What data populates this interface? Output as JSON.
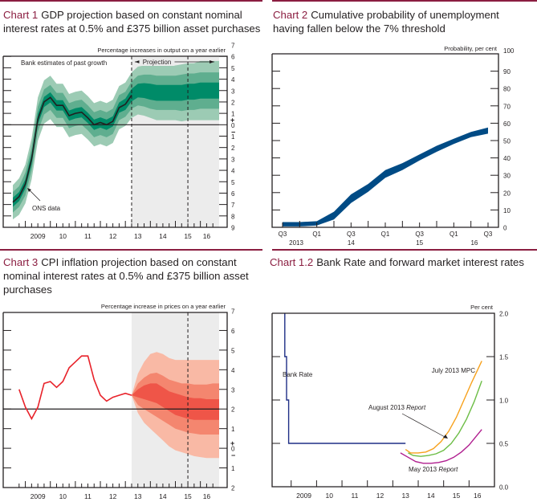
{
  "colors": {
    "title_accent": "#8b1e41",
    "gdp_band_outer": "#9ccbb4",
    "gdp_band_mid": "#5fae8f",
    "gdp_band_inner": "#008b68",
    "projection_shade": "#ececec",
    "unemployment_band": "#004b85",
    "cpi_band_outer": "#f9b9a5",
    "cpi_band_mid": "#f4866f",
    "cpi_band_inner": "#ef5548",
    "cpi_line": "#e8222a",
    "bank_rate": "#1f2f86",
    "july_mpc": "#f7a11c",
    "august_report": "#6cbd45",
    "may_report": "#b01e8f"
  },
  "chart_data": [
    {
      "id": "chart1",
      "type": "area",
      "number_label": "Chart 1",
      "title": "GDP projection based on constant nominal interest rates at 0.5% and £375 billion asset purchases",
      "ylabel": "Percentage increases in output on a year earlier",
      "ylim": [
        -9,
        7
      ],
      "yticks": [
        "7",
        "6",
        "5",
        "4",
        "3",
        "2",
        "1",
        "0",
        "1",
        "2",
        "3",
        "4",
        "5",
        "6",
        "7",
        "8",
        "9"
      ],
      "ytick_values": [
        7,
        6,
        5,
        4,
        3,
        2,
        1,
        0,
        -1,
        -2,
        -3,
        -4,
        -5,
        -6,
        -7,
        -8,
        -9
      ],
      "sign_marks": [
        "+",
        "−"
      ],
      "xlim": [
        2008.5,
        2016.75
      ],
      "xtick_labels": [
        "2009",
        "10",
        "11",
        "12",
        "13",
        "14",
        "15",
        "16"
      ],
      "xtick_positions": [
        2009.5,
        2010.5,
        2011.5,
        2012.5,
        2013.5,
        2014.5,
        2015.5,
        2016.25
      ],
      "projection_start": 2013.25,
      "two_year_point": 2015.5,
      "annotations": {
        "past": "Bank estimates of past growth",
        "projection": "Projection",
        "ons": "ONS data"
      },
      "x": [
        2008.5,
        2008.75,
        2009,
        2009.25,
        2009.5,
        2009.75,
        2010,
        2010.25,
        2010.5,
        2010.75,
        2011,
        2011.25,
        2011.5,
        2011.75,
        2012,
        2012.25,
        2012.5,
        2012.75,
        2013,
        2013.25,
        2013.5,
        2013.75,
        2014,
        2014.25,
        2014.5,
        2014.75,
        2015,
        2015.25,
        2015.5,
        2015.75,
        2016,
        2016.25,
        2016.5,
        2016.75
      ],
      "central": [
        -6.8,
        -6.3,
        -5.2,
        -3,
        0.5,
        2,
        2.4,
        1.7,
        1.7,
        0.8,
        1,
        1.1,
        0.6,
        0,
        0.2,
        0,
        0.3,
        1.5,
        1.8,
        2.6,
        3,
        3,
        2.9,
        2.8,
        2.8,
        2.8,
        2.8,
        2.8,
        2.9,
        2.9,
        3,
        3,
        3,
        3
      ],
      "bands": [
        {
          "name": "90%",
          "halfwidth": [
            1.5,
            1.6,
            1.7,
            1.8,
            1.9,
            1.9,
            1.9,
            1.9,
            1.9,
            1.9,
            1.9,
            1.9,
            1.9,
            1.9,
            1.9,
            1.9,
            1.9,
            1.9,
            1.9,
            2,
            2.1,
            2.2,
            2.3,
            2.4,
            2.4,
            2.4,
            2.4,
            2.5,
            2.5,
            2.5,
            2.6,
            2.6,
            2.6,
            2.6
          ]
        },
        {
          "name": "60%",
          "halfwidth": [
            0.9,
            0.9,
            1,
            1,
            1.1,
            1.1,
            1.1,
            1.1,
            1.1,
            1.1,
            1.1,
            1.1,
            1.1,
            1.1,
            1.1,
            1.1,
            1.1,
            1.1,
            1.1,
            1.2,
            1.3,
            1.4,
            1.5,
            1.5,
            1.5,
            1.5,
            1.5,
            1.6,
            1.6,
            1.6,
            1.6,
            1.6,
            1.6,
            1.6
          ]
        },
        {
          "name": "30%",
          "halfwidth": [
            0.4,
            0.4,
            0.4,
            0.45,
            0.45,
            0.45,
            0.45,
            0.45,
            0.45,
            0.45,
            0.45,
            0.45,
            0.45,
            0.45,
            0.45,
            0.45,
            0.45,
            0.45,
            0.5,
            0.55,
            0.6,
            0.65,
            0.7,
            0.7,
            0.7,
            0.7,
            0.7,
            0.7,
            0.7,
            0.7,
            0.7,
            0.7,
            0.7,
            0.7
          ]
        }
      ]
    },
    {
      "id": "chart2",
      "type": "area",
      "number_label": "Chart 2",
      "title": "Cumulative probability of unemployment having fallen below the 7% threshold",
      "ylabel": "Probability, per cent",
      "ylim": [
        0,
        100
      ],
      "yticks": [
        "0",
        "10",
        "20",
        "30",
        "40",
        "50",
        "60",
        "70",
        "80",
        "90",
        "100"
      ],
      "ytick_values": [
        0,
        10,
        20,
        30,
        40,
        50,
        60,
        70,
        80,
        90,
        100
      ],
      "xtick_labels": [
        "Q3",
        "Q1",
        "Q3",
        "Q1",
        "Q3",
        "Q1",
        "Q3"
      ],
      "xtick_positions": [
        0,
        2,
        4,
        6,
        8,
        10,
        12
      ],
      "year_labels": [
        "2013",
        "14",
        "15",
        "16"
      ],
      "year_positions": [
        0.8,
        4,
        8,
        11.2
      ],
      "x": [
        0,
        1,
        2,
        3,
        4,
        5,
        6,
        7,
        8,
        9,
        10,
        11,
        12
      ],
      "lower": [
        0.5,
        0.5,
        1,
        4.5,
        14,
        20.5,
        28.5,
        33,
        38.5,
        43.5,
        48,
        52,
        54
      ],
      "upper": [
        3,
        3,
        3.5,
        9,
        19,
        25,
        33,
        37,
        42,
        47,
        51,
        55,
        57.5
      ]
    },
    {
      "id": "chart3",
      "type": "area",
      "number_label": "Chart 3",
      "title": "CPI inflation projection based on constant nominal interest rates at 0.5% and £375 billion asset purchases",
      "ylabel": "Percentage increase in prices on a year earlier",
      "ylim": [
        -2,
        7
      ],
      "yticks": [
        "7",
        "6",
        "5",
        "4",
        "3",
        "2",
        "1",
        "0",
        "1",
        "2"
      ],
      "ytick_values": [
        7,
        6,
        5,
        4,
        3,
        2,
        1,
        0,
        -1,
        -2
      ],
      "sign_marks": [
        "+",
        "−"
      ],
      "xlim": [
        2008.5,
        2016.75
      ],
      "xtick_labels": [
        "2009",
        "10",
        "11",
        "12",
        "13",
        "14",
        "15",
        "16"
      ],
      "xtick_positions": [
        2009.5,
        2010.5,
        2011.5,
        2012.5,
        2013.5,
        2014.5,
        2015.5,
        2016.25
      ],
      "projection_start": 2013.25,
      "two_year_point": 2015.5,
      "history_x": [
        2008.75,
        2009,
        2009.25,
        2009.5,
        2009.75,
        2010,
        2010.25,
        2010.5,
        2010.75,
        2011,
        2011.25,
        2011.5,
        2011.75,
        2012,
        2012.25,
        2012.5,
        2012.75,
        2013,
        2013.25
      ],
      "history_y": [
        3,
        2.1,
        1.5,
        2.1,
        3.3,
        3.4,
        3.1,
        3.4,
        4.1,
        4.4,
        4.7,
        4.7,
        3.5,
        2.7,
        2.4,
        2.6,
        2.7,
        2.8,
        2.7
      ],
      "fan_x": [
        2013.25,
        2013.5,
        2013.75,
        2014,
        2014.25,
        2014.5,
        2014.75,
        2015,
        2015.25,
        2015.5,
        2015.75,
        2016,
        2016.25,
        2016.5,
        2016.75
      ],
      "fan_bands": [
        {
          "name": "90%",
          "upper": [
            2.7,
            3.8,
            4.4,
            4.8,
            4.9,
            4.8,
            4.6,
            4.5,
            4.5,
            4.5,
            4.5,
            4.5,
            4.5,
            4.5,
            4.5
          ],
          "lower": [
            2.7,
            1.8,
            1.3,
            1.0,
            0.7,
            0.4,
            0.1,
            -0.1,
            -0.2,
            -0.3,
            -0.4,
            -0.45,
            -0.5,
            -0.5,
            -0.5
          ]
        },
        {
          "name": "60%",
          "upper": [
            2.7,
            3.3,
            3.6,
            3.8,
            3.85,
            3.7,
            3.5,
            3.4,
            3.3,
            3.3,
            3.25,
            3.25,
            3.25,
            3.3,
            3.3
          ],
          "lower": [
            2.7,
            2.2,
            2.0,
            1.8,
            1.6,
            1.4,
            1.2,
            1.0,
            0.9,
            0.8,
            0.75,
            0.7,
            0.7,
            0.7,
            0.7
          ]
        },
        {
          "name": "30%",
          "upper": [
            2.7,
            3.0,
            3.2,
            3.3,
            3.3,
            3.1,
            2.9,
            2.8,
            2.7,
            2.6,
            2.55,
            2.55,
            2.5,
            2.5,
            2.5
          ],
          "lower": [
            2.7,
            2.6,
            2.5,
            2.4,
            2.3,
            2.1,
            1.9,
            1.7,
            1.6,
            1.5,
            1.45,
            1.45,
            1.45,
            1.45,
            1.45
          ]
        }
      ]
    },
    {
      "id": "chart4",
      "type": "line",
      "number_label": "Chart 1.2",
      "title": "Bank Rate and forward market interest rates",
      "ylabel": "Per cent",
      "ylim": [
        0,
        2.0
      ],
      "yticks": [
        "0.0",
        "0.5",
        "1.0",
        "1.5",
        "2.0"
      ],
      "ytick_values": [
        0,
        0.5,
        1.0,
        1.5,
        2.0
      ],
      "xlim": [
        2008.25,
        2017
      ],
      "xtick_labels": [
        "2009",
        "10",
        "11",
        "12",
        "13",
        "14",
        "15",
        "16"
      ],
      "xtick_positions": [
        2009.5,
        2010.5,
        2011.5,
        2012.5,
        2013.5,
        2014.5,
        2015.5,
        2016.33
      ],
      "series": [
        {
          "name": "Bank Rate",
          "label": "Bank Rate",
          "x": [
            2008.75,
            2008.75,
            2008.82,
            2008.82,
            2008.9,
            2008.9,
            2009.0,
            2009.0,
            2013.5
          ],
          "y": [
            2.0,
            1.5,
            1.5,
            1.0,
            1.0,
            0.5,
            0.5,
            0.5,
            0.5
          ]
        },
        {
          "name": "July 2013 MPC",
          "label": "July 2013 MPC",
          "x": [
            2013.5,
            2013.7,
            2014,
            2014.3,
            2014.6,
            2014.9,
            2015.2,
            2015.5,
            2015.8,
            2016.1,
            2016.5
          ],
          "y": [
            0.43,
            0.39,
            0.39,
            0.4,
            0.44,
            0.52,
            0.64,
            0.8,
            1.0,
            1.2,
            1.45
          ]
        },
        {
          "name": "August 2013 Report",
          "label": "August 2013 Report",
          "x": [
            2013.6,
            2013.8,
            2014.1,
            2014.4,
            2014.7,
            2015,
            2015.3,
            2015.6,
            2015.9,
            2016.2,
            2016.5
          ],
          "y": [
            0.39,
            0.36,
            0.35,
            0.36,
            0.38,
            0.42,
            0.5,
            0.62,
            0.78,
            0.98,
            1.22
          ]
        },
        {
          "name": "May 2013 Report",
          "label": "May 2013 Report",
          "x": [
            2013.3,
            2013.6,
            2013.9,
            2014.2,
            2014.5,
            2014.8,
            2015.1,
            2015.4,
            2015.7,
            2016,
            2016.5
          ],
          "y": [
            0.39,
            0.34,
            0.29,
            0.27,
            0.27,
            0.28,
            0.3,
            0.34,
            0.4,
            0.48,
            0.66
          ]
        }
      ],
      "annotations": {
        "bank_rate": "Bank Rate",
        "july": "July 2013 MPC",
        "august": "August 2013",
        "august_italic": "Report",
        "may": "May 2013",
        "may_italic": "Report"
      }
    }
  ]
}
